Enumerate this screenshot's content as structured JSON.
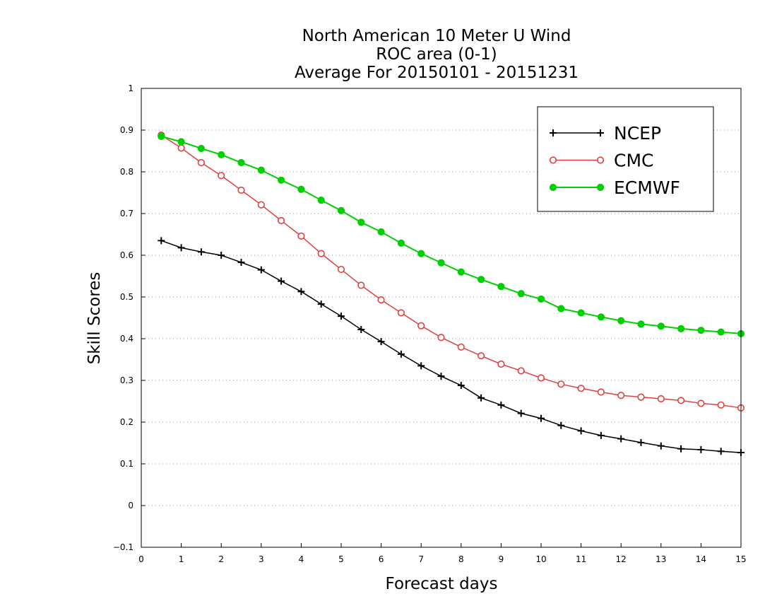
{
  "chart_data": {
    "type": "line",
    "title": [
      "North American 10 Meter U Wind",
      "ROC area (0-1)",
      "Average For 20150101 - 20151231"
    ],
    "xlabel": "Forecast days",
    "ylabel": "Skill Scores",
    "xlim": [
      0,
      15
    ],
    "ylim": [
      -0.1,
      1
    ],
    "x_ticks": [
      0,
      1,
      2,
      3,
      4,
      5,
      6,
      7,
      8,
      9,
      10,
      11,
      12,
      13,
      14,
      15
    ],
    "x_tick_labels": [
      "0",
      "1",
      "2",
      "3",
      "4",
      "5",
      "6",
      "7",
      "8",
      "9",
      "10",
      "11",
      "12",
      "13",
      "14",
      "15"
    ],
    "y_ticks": [
      -0.1,
      0,
      0.1,
      0.2,
      0.3,
      0.4,
      0.5,
      0.6,
      0.7,
      0.8,
      0.9,
      1
    ],
    "y_tick_labels": [
      "−0.1",
      "0",
      "0.1",
      "0.2",
      "0.3",
      "0.4",
      "0.5",
      "0.6",
      "0.7",
      "0.8",
      "0.9",
      "1"
    ],
    "grid": "horizontal dotted",
    "legend_position": "top-right",
    "x": [
      0.5,
      1,
      1.5,
      2,
      2.5,
      3,
      3.5,
      4,
      4.5,
      5,
      5.5,
      6,
      6.5,
      7,
      7.5,
      8,
      8.5,
      9,
      9.5,
      10,
      10.5,
      11,
      11.5,
      12,
      12.5,
      13,
      13.5,
      14,
      14.5,
      15
    ],
    "series": [
      {
        "name": "NCEP",
        "color": "#000000",
        "marker": "plus",
        "values": [
          0.635,
          0.618,
          0.608,
          0.6,
          0.583,
          0.565,
          0.538,
          0.513,
          0.483,
          0.454,
          0.422,
          0.393,
          0.363,
          0.335,
          0.31,
          0.288,
          0.258,
          0.241,
          0.221,
          0.209,
          0.192,
          0.179,
          0.168,
          0.16,
          0.151,
          0.143,
          0.136,
          0.134,
          0.13,
          0.127
        ]
      },
      {
        "name": "CMC",
        "color": "#e04040",
        "marker": "open-circle",
        "values": [
          0.888,
          0.857,
          0.822,
          0.791,
          0.756,
          0.721,
          0.683,
          0.646,
          0.604,
          0.566,
          0.528,
          0.493,
          0.462,
          0.431,
          0.403,
          0.38,
          0.359,
          0.339,
          0.323,
          0.306,
          0.291,
          0.281,
          0.272,
          0.264,
          0.26,
          0.256,
          0.252,
          0.245,
          0.241,
          0.234
        ]
      },
      {
        "name": "ECMWF",
        "color": "#00d000",
        "marker": "filled-circle",
        "values": [
          0.885,
          0.872,
          0.856,
          0.841,
          0.822,
          0.804,
          0.78,
          0.758,
          0.732,
          0.707,
          0.679,
          0.656,
          0.629,
          0.604,
          0.582,
          0.56,
          0.542,
          0.525,
          0.508,
          0.495,
          0.472,
          0.462,
          0.452,
          0.443,
          0.435,
          0.43,
          0.424,
          0.42,
          0.416,
          0.412
        ]
      }
    ]
  }
}
